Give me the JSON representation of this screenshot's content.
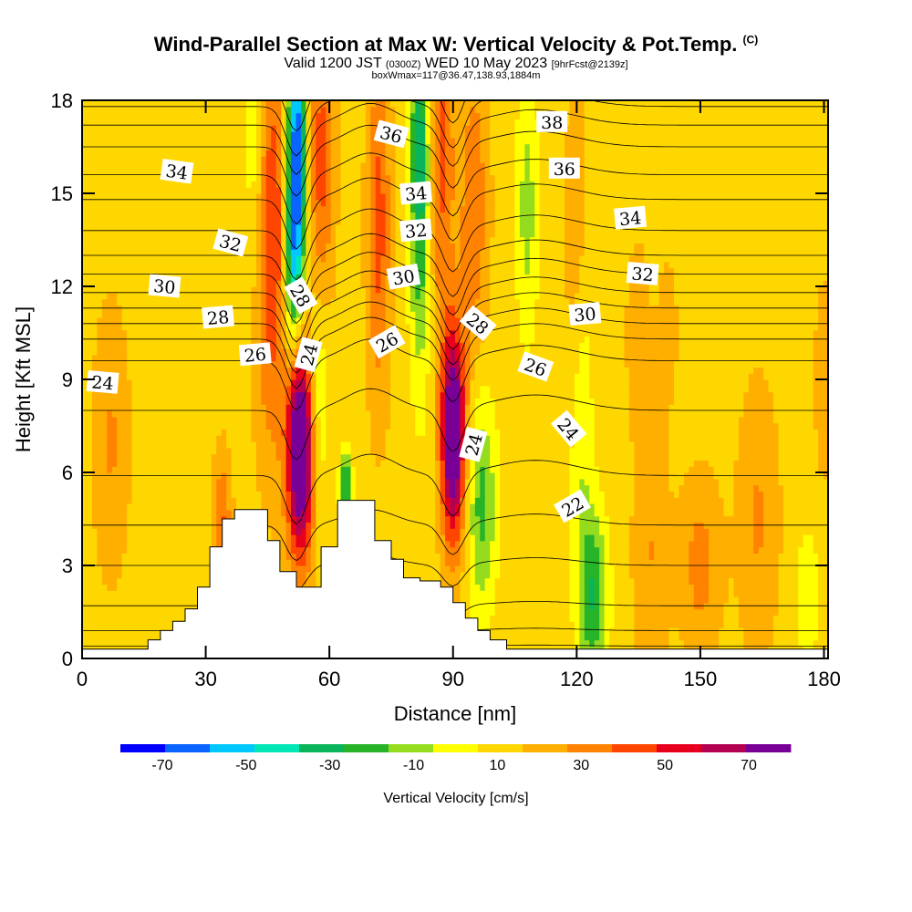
{
  "header": {
    "title": "Wind-Parallel Section at Max W: Vertical Velocity & Pot.Temp.",
    "copyright": "(C)",
    "valid_prefix": "Valid 1200 JST",
    "valid_utc": "(0300Z)",
    "valid_date": "WED 10 May 2023",
    "forecast": "[9hrFcst@2139z]",
    "box_info": "boxWmax=117@36.47,138.93,1884m"
  },
  "chart_data": {
    "type": "heatmap",
    "title": "Wind-Parallel Section at Max W: Vertical Velocity & Pot.Temp.",
    "xlabel": "Distance [nm]",
    "ylabel": "Height [Kft MSL]",
    "xlim": [
      0,
      181
    ],
    "ylim": [
      0,
      18
    ],
    "x_ticks": [
      0,
      30,
      60,
      90,
      120,
      150,
      180
    ],
    "y_ticks": [
      0,
      3,
      6,
      9,
      12,
      15,
      18
    ],
    "colorbar": {
      "label": "Vertical Velocity [cm/s]",
      "levels": [
        -80,
        -70,
        -60,
        -50,
        -40,
        -30,
        -20,
        -10,
        0,
        10,
        20,
        30,
        40,
        50,
        60,
        70,
        80
      ],
      "tick_labels": [
        "-70",
        "-50",
        "-30",
        "-10",
        "10",
        "30",
        "50",
        "70"
      ],
      "colors": [
        "#0000ff",
        "#0a64ff",
        "#00c8ff",
        "#00e6b4",
        "#0ab45a",
        "#28b428",
        "#96dc1e",
        "#ffff00",
        "#ffd700",
        "#ffaf00",
        "#ff8200",
        "#ff4600",
        "#e6001e",
        "#b40050",
        "#780096"
      ]
    },
    "vertical_velocity_features": [
      {
        "x": 52,
        "y": 16.5,
        "sx": 1.6,
        "sy": 3.0,
        "w": -75
      },
      {
        "x": 51,
        "y": 12.5,
        "sx": 1.6,
        "sy": 2.2,
        "w": -40
      },
      {
        "x": 46,
        "y": 13.5,
        "sx": 3.0,
        "sy": 4.5,
        "w": 35
      },
      {
        "x": 58,
        "y": 16.0,
        "sx": 2.2,
        "sy": 3.5,
        "w": 28
      },
      {
        "x": 53,
        "y": 6.8,
        "sx": 2.3,
        "sy": 2.4,
        "w": 85
      },
      {
        "x": 57,
        "y": 8.5,
        "sx": 2.0,
        "sy": 2.5,
        "w": -22
      },
      {
        "x": 64,
        "y": 5.6,
        "sx": 1.0,
        "sy": 0.8,
        "w": -40
      },
      {
        "x": 72,
        "y": 14.0,
        "sx": 2.0,
        "sy": 4.0,
        "w": 28
      },
      {
        "x": 82,
        "y": 16.0,
        "sx": 1.8,
        "sy": 4.5,
        "w": -45
      },
      {
        "x": 87,
        "y": 16.5,
        "sx": 2.2,
        "sy": 4.0,
        "w": 28
      },
      {
        "x": 90,
        "y": 7.2,
        "sx": 2.0,
        "sy": 2.4,
        "w": 78
      },
      {
        "x": 97,
        "y": 5.0,
        "sx": 2.5,
        "sy": 2.5,
        "w": -30
      },
      {
        "x": 95,
        "y": 14.5,
        "sx": 2.5,
        "sy": 3.5,
        "w": 22
      },
      {
        "x": 108,
        "y": 14.5,
        "sx": 2.0,
        "sy": 3.0,
        "w": -20
      },
      {
        "x": 124,
        "y": 2.0,
        "sx": 2.5,
        "sy": 2.0,
        "w": -35
      },
      {
        "x": 121,
        "y": 8.0,
        "sx": 2.0,
        "sy": 4.0,
        "w": -18
      },
      {
        "x": 7,
        "y": 7.0,
        "sx": 3.0,
        "sy": 3.0,
        "w": 15
      },
      {
        "x": 34,
        "y": 4.5,
        "sx": 1.5,
        "sy": 1.5,
        "w": 25
      },
      {
        "x": 120,
        "y": 13.0,
        "sx": 2.0,
        "sy": 4.0,
        "w": 15
      },
      {
        "x": 135,
        "y": 10.5,
        "sx": 2.0,
        "sy": 2.0,
        "w": 12
      },
      {
        "x": 142,
        "y": 10.5,
        "sx": 1.6,
        "sy": 1.5,
        "w": 12
      },
      {
        "x": 150,
        "y": 3.0,
        "sx": 3.5,
        "sy": 2.0,
        "w": 18
      },
      {
        "x": 138,
        "y": 3.5,
        "sx": 3.0,
        "sy": 3.0,
        "w": 14
      },
      {
        "x": 164,
        "y": 4.5,
        "sx": 3.5,
        "sy": 3.0,
        "w": 15
      },
      {
        "x": 176,
        "y": 2.0,
        "sx": 2.0,
        "sy": 1.5,
        "w": -15
      },
      {
        "x": 180,
        "y": 9.0,
        "sx": 1.5,
        "sy": 2.0,
        "w": 14
      },
      {
        "x": 42,
        "y": 16.0,
        "sx": 1.8,
        "sy": 3.0,
        "w": -18
      }
    ],
    "terrain_steps": [
      {
        "x0": 0,
        "x1": 16,
        "top": 0.3
      },
      {
        "x0": 16,
        "x1": 19,
        "top": 0.6
      },
      {
        "x0": 19,
        "x1": 22,
        "top": 0.9
      },
      {
        "x0": 22,
        "x1": 25,
        "top": 1.2
      },
      {
        "x0": 25,
        "x1": 28,
        "top": 1.6
      },
      {
        "x0": 28,
        "x1": 31,
        "top": 2.3
      },
      {
        "x0": 31,
        "x1": 34,
        "top": 3.6
      },
      {
        "x0": 34,
        "x1": 37,
        "top": 4.5
      },
      {
        "x0": 37,
        "x1": 40,
        "top": 4.8
      },
      {
        "x0": 40,
        "x1": 45,
        "top": 4.8
      },
      {
        "x0": 45,
        "x1": 48,
        "top": 3.8
      },
      {
        "x0": 48,
        "x1": 52,
        "top": 2.8
      },
      {
        "x0": 52,
        "x1": 58,
        "top": 2.3
      },
      {
        "x0": 58,
        "x1": 62,
        "top": 3.6
      },
      {
        "x0": 62,
        "x1": 71,
        "top": 5.1
      },
      {
        "x0": 71,
        "x1": 75,
        "top": 3.8
      },
      {
        "x0": 75,
        "x1": 78,
        "top": 3.2
      },
      {
        "x0": 78,
        "x1": 82,
        "top": 2.6
      },
      {
        "x0": 82,
        "x1": 87,
        "top": 2.5
      },
      {
        "x0": 87,
        "x1": 90,
        "top": 2.3
      },
      {
        "x0": 90,
        "x1": 93,
        "top": 1.8
      },
      {
        "x0": 93,
        "x1": 96,
        "top": 1.3
      },
      {
        "x0": 96,
        "x1": 99,
        "top": 0.9
      },
      {
        "x0": 99,
        "x1": 103,
        "top": 0.6
      },
      {
        "x0": 103,
        "x1": 181,
        "top": 0.3
      }
    ],
    "pot_temp_contours": {
      "levels_from": 19,
      "levels_to": 39,
      "step": 1,
      "bases": [
        {
          "theta": 19,
          "z": 0.4
        },
        {
          "theta": 20,
          "z": 0.9
        },
        {
          "theta": 21,
          "z": 1.7
        },
        {
          "theta": 22,
          "z": 3.0
        },
        {
          "theta": 23,
          "z": 4.3
        },
        {
          "theta": 24,
          "z": 5.9
        },
        {
          "theta": 25,
          "z": 8.0
        },
        {
          "theta": 26,
          "z": 9.6
        },
        {
          "theta": 27,
          "z": 10.3
        },
        {
          "theta": 28,
          "z": 10.8
        },
        {
          "theta": 29,
          "z": 11.3
        },
        {
          "theta": 30,
          "z": 11.8
        },
        {
          "theta": 31,
          "z": 12.4
        },
        {
          "theta": 32,
          "z": 13.0
        },
        {
          "theta": 33,
          "z": 13.8
        },
        {
          "theta": 34,
          "z": 14.8
        },
        {
          "theta": 35,
          "z": 15.6
        },
        {
          "theta": 36,
          "z": 16.5
        },
        {
          "theta": 37,
          "z": 17.2
        },
        {
          "theta": 38,
          "z": 17.8
        },
        {
          "theta": 39,
          "z": 18.6
        }
      ],
      "perturbations": [
        {
          "x": 52,
          "sx": 2.5,
          "amp": -1.6
        },
        {
          "x": 90,
          "sx": 2.5,
          "amp": -1.4
        },
        {
          "x": 70,
          "sx": 6.0,
          "amp": 0.7
        },
        {
          "x": 110,
          "sx": 10.0,
          "amp": 0.5
        }
      ],
      "labels": [
        {
          "text": "24",
          "x": 5,
          "y": 8.9,
          "rot": 5
        },
        {
          "text": "26",
          "x": 42,
          "y": 9.8,
          "rot": -5
        },
        {
          "text": "24",
          "x": 55,
          "y": 9.8,
          "rot": -75
        },
        {
          "text": "28",
          "x": 33,
          "y": 11.0,
          "rot": -5
        },
        {
          "text": "28",
          "x": 53,
          "y": 11.7,
          "rot": 60
        },
        {
          "text": "30",
          "x": 20,
          "y": 12.0,
          "rot": 5
        },
        {
          "text": "32",
          "x": 36,
          "y": 13.4,
          "rot": 15
        },
        {
          "text": "34",
          "x": 23,
          "y": 15.7,
          "rot": 8
        },
        {
          "text": "26",
          "x": 74,
          "y": 10.2,
          "rot": -30
        },
        {
          "text": "24",
          "x": 95,
          "y": 6.9,
          "rot": -75
        },
        {
          "text": "28",
          "x": 96,
          "y": 10.8,
          "rot": 40
        },
        {
          "text": "30",
          "x": 78,
          "y": 12.3,
          "rot": -10
        },
        {
          "text": "32",
          "x": 81,
          "y": 13.8,
          "rot": -5
        },
        {
          "text": "34",
          "x": 81,
          "y": 15.0,
          "rot": -5
        },
        {
          "text": "36",
          "x": 75,
          "y": 16.9,
          "rot": 15
        },
        {
          "text": "26",
          "x": 110,
          "y": 9.4,
          "rot": 20
        },
        {
          "text": "24",
          "x": 118,
          "y": 7.4,
          "rot": 50
        },
        {
          "text": "22",
          "x": 119,
          "y": 4.9,
          "rot": -30
        },
        {
          "text": "30",
          "x": 122,
          "y": 11.1,
          "rot": -5
        },
        {
          "text": "32",
          "x": 136,
          "y": 12.4,
          "rot": 5
        },
        {
          "text": "34",
          "x": 133,
          "y": 14.2,
          "rot": -5
        },
        {
          "text": "36",
          "x": 117,
          "y": 15.8,
          "rot": 0
        },
        {
          "text": "38",
          "x": 114,
          "y": 17.3,
          "rot": 0
        }
      ]
    }
  }
}
